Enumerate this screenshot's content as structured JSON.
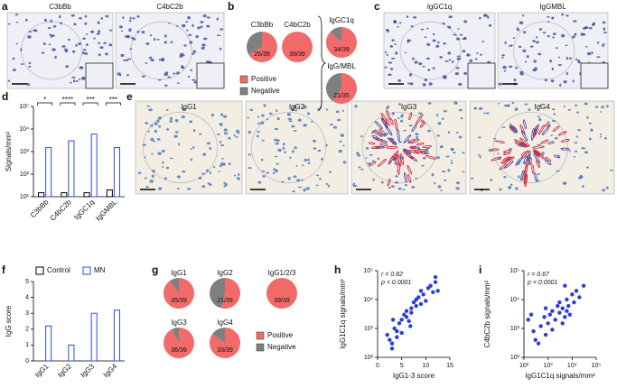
{
  "panel_labels": [
    "a",
    "b",
    "c",
    "d",
    "e",
    "f",
    "g",
    "h",
    "i"
  ],
  "micrographs": [
    {
      "titles": [
        "C3bBb",
        "C4bC2b"
      ]
    },
    {
      "titles": [
        "IgGC1q",
        "IgGMBL"
      ]
    },
    {
      "titles": [
        "IgG1",
        "IgG2",
        "IgG3",
        "IgG4"
      ]
    }
  ],
  "chart_data": [
    {
      "type": "pie",
      "pies": [
        {
          "name": "C3bBb",
          "positive": 26,
          "total": 39,
          "label": "26/39"
        },
        {
          "name": "C4bC2b",
          "positive": 39,
          "total": 39,
          "label": "39/39"
        },
        {
          "name": "IgGC1q",
          "positive": 34,
          "total": 39,
          "label": "34/39"
        },
        {
          "name": "IgG/MBL",
          "positive": 21,
          "total": 35,
          "label": "21/35"
        }
      ],
      "series": [
        {
          "name": "Positive",
          "color": "#f26b6b"
        },
        {
          "name": "Negative",
          "color": "#7f7f7f"
        }
      ]
    },
    {
      "type": "bar",
      "ylabel": "Signals/mm²",
      "log": true,
      "ylim": [
        10,
        100000
      ],
      "yticks": [
        {
          "value": 10,
          "label": "10¹"
        },
        {
          "value": 100,
          "label": "10²"
        },
        {
          "value": 1000,
          "label": "10³"
        },
        {
          "value": 10000,
          "label": "10⁴"
        },
        {
          "value": 100000,
          "label": "10⁵"
        }
      ],
      "categories": [
        "C3bBb",
        "C4bC2b",
        "IgGC1q",
        "IgGMBL"
      ],
      "series": [
        {
          "color": "#000000",
          "values": [
            15,
            15,
            15,
            20
          ]
        },
        {
          "color": "#2b4ce0",
          "values": [
            1500,
            3000,
            6000,
            1500
          ]
        }
      ],
      "annotations": [
        "*",
        "****",
        "***",
        "***"
      ]
    },
    {
      "type": "bar",
      "ylabel": "IgG score",
      "log": false,
      "ylim": [
        0,
        5
      ],
      "yticks": [
        0,
        1,
        2,
        3,
        4,
        5
      ],
      "categories": [
        "IgG1",
        "IgG2",
        "IgG3",
        "IgG4"
      ],
      "series": [
        {
          "name": "Control",
          "color": "#000000",
          "values": [
            0,
            0,
            0,
            0
          ]
        },
        {
          "name": "MN",
          "color": "#2b4ce0",
          "values": [
            2.2,
            1.0,
            3.0,
            3.2
          ]
        }
      ]
    },
    {
      "type": "pie",
      "pies": [
        {
          "name": "IgG1",
          "positive": 35,
          "total": 39,
          "label": "35/39"
        },
        {
          "name": "IgG2",
          "positive": 21,
          "total": 39,
          "label": "21/39"
        },
        {
          "name": "IgG1/2/3",
          "positive": 39,
          "total": 39,
          "label": "39/39"
        },
        {
          "name": "IgG3",
          "positive": 36,
          "total": 39,
          "label": "36/39"
        },
        {
          "name": "IgG4",
          "positive": 33,
          "total": 39,
          "label": "33/39"
        }
      ],
      "series": [
        {
          "name": "Positive",
          "color": "#f26b6b"
        },
        {
          "name": "Negative",
          "color": "#7f7f7f"
        }
      ]
    },
    {
      "type": "scatter",
      "xlabel": "IgG1-3 score",
      "ylabel": "IgG1C1q signals/mm²",
      "xlog": false,
      "ylog": true,
      "xlim": [
        0,
        15
      ],
      "xticks": [
        0,
        5,
        10,
        15
      ],
      "ylim": [
        100,
        100000
      ],
      "yticks": [
        {
          "value": 100,
          "label": "10²"
        },
        {
          "value": 1000,
          "label": "10³"
        },
        {
          "value": 10000,
          "label": "10⁴"
        },
        {
          "value": 100000,
          "label": "10⁵"
        }
      ],
      "annotations": [
        "r = 0.82",
        "p < 0.0001"
      ],
      "series": [
        {
          "color": "#2b3fd6",
          "x": [
            2,
            2.5,
            3,
            3,
            3.5,
            4,
            4,
            4.5,
            5,
            5,
            5.5,
            6,
            6,
            6.5,
            7,
            7,
            7.5,
            8,
            8,
            8.5,
            9,
            9,
            9.5,
            10,
            10.5,
            11,
            11.5,
            12,
            12,
            12.5,
            3.2,
            6.8
          ],
          "y": [
            600,
            400,
            300,
            200,
            1000,
            800,
            500,
            1500,
            2000,
            700,
            3000,
            2500,
            4000,
            1800,
            5000,
            3500,
            8000,
            6000,
            10000,
            12000,
            7000,
            20000,
            15000,
            9000,
            25000,
            30000,
            18000,
            40000,
            60000,
            20000,
            2000,
            1200
          ]
        }
      ]
    },
    {
      "type": "scatter",
      "xlabel": "IgG1C1q signals/mm²",
      "ylabel": "C4bC2b signals/mm²",
      "xlog": true,
      "ylog": true,
      "xlim": [
        100,
        100000
      ],
      "xticks": [
        {
          "value": 100,
          "label": "10²"
        },
        {
          "value": 1000,
          "label": "10³"
        },
        {
          "value": 10000,
          "label": "10⁴"
        },
        {
          "value": 100000,
          "label": "10⁵"
        }
      ],
      "ylim": [
        100,
        100000
      ],
      "yticks": [
        {
          "value": 100,
          "label": "10²"
        },
        {
          "value": 1000,
          "label": "10³"
        },
        {
          "value": 10000,
          "label": "10⁴"
        },
        {
          "value": 100000,
          "label": "10⁵"
        }
      ],
      "annotations": [
        "r = 0.67",
        "p < 0.0001"
      ],
      "series": [
        {
          "color": "#2b3fd6",
          "x": [
            150,
            200,
            250,
            300,
            400,
            500,
            700,
            800,
            1000,
            1200,
            1500,
            2000,
            2500,
            3000,
            3000,
            4000,
            5000,
            6000,
            6000,
            7000,
            8000,
            10000,
            12000,
            15000,
            20000,
            30000,
            5000,
            1500,
            800,
            4000
          ],
          "y": [
            2000,
            3000,
            800,
            400,
            300,
            1200,
            2500,
            5000,
            1500,
            3000,
            4000,
            2000,
            6000,
            3500,
            8000,
            5000,
            2500,
            10000,
            4000,
            6000,
            3000,
            15000,
            8000,
            20000,
            12000,
            30000,
            30000,
            900,
            600,
            1500
          ]
        }
      ]
    }
  ]
}
